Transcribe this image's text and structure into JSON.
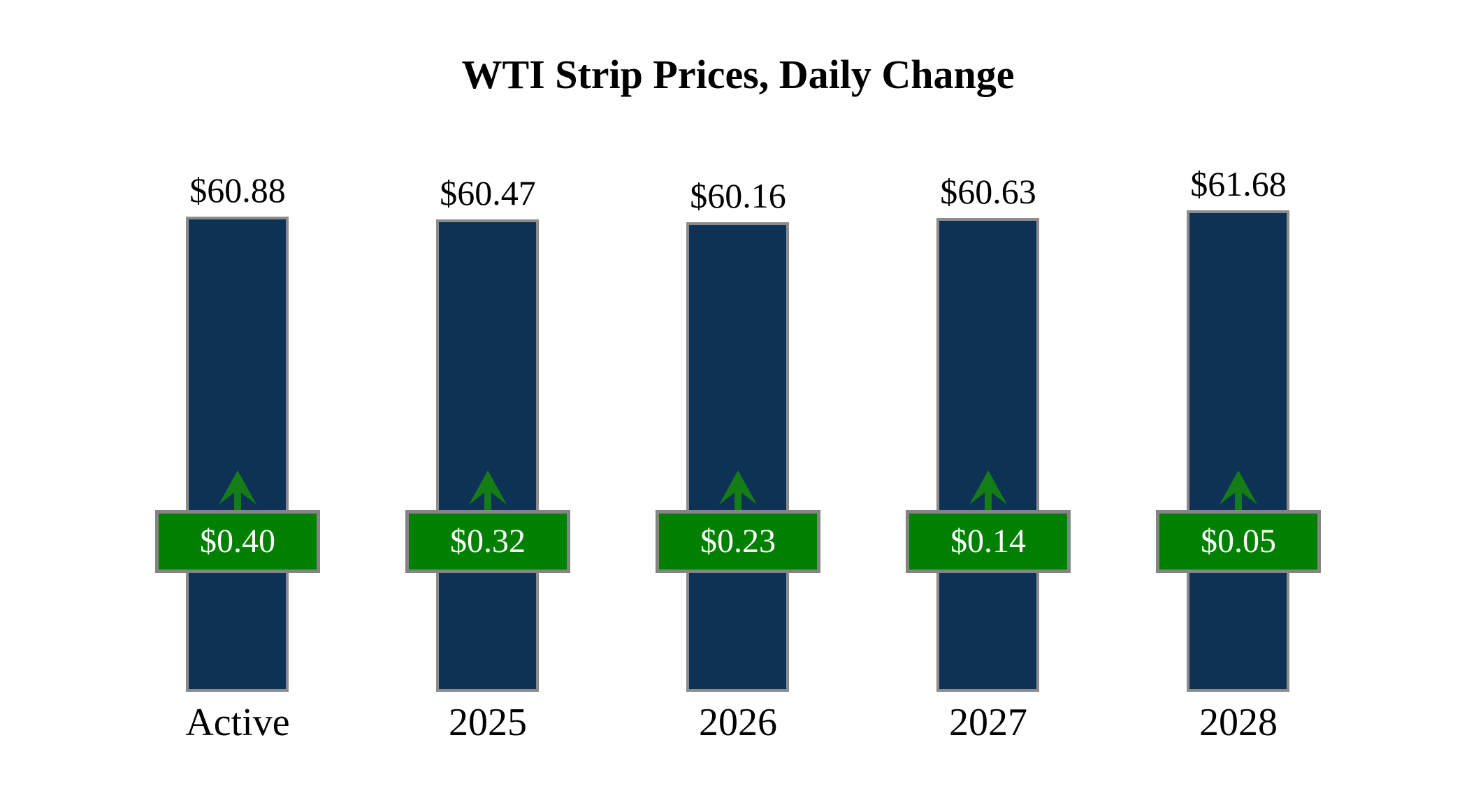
{
  "title": "WTI Strip Prices, Daily Change",
  "chart_data": {
    "type": "bar",
    "title": "WTI Strip Prices, Daily Change",
    "categories": [
      "Active",
      "2025",
      "2026",
      "2027",
      "2028"
    ],
    "series": [
      {
        "name": "Strip Price",
        "values": [
          60.88,
          60.47,
          60.16,
          60.63,
          61.68
        ],
        "labels": [
          "$60.88",
          "$60.47",
          "$60.16",
          "$60.63",
          "$61.68"
        ]
      },
      {
        "name": "Daily Change",
        "values": [
          0.4,
          0.32,
          0.23,
          0.14,
          0.05
        ],
        "labels": [
          "$0.40",
          "$0.32",
          "$0.23",
          "$0.14",
          "$0.05"
        ],
        "direction": "up"
      }
    ],
    "ylim": [
      0,
      62
    ],
    "grid": false,
    "legend": "none",
    "colors": {
      "bar_fill": "#0e3156",
      "bar_border": "#8c8c8c",
      "badge_fill": "#008000",
      "badge_border": "#848484",
      "badge_text": "#ffffff",
      "arrow": "#157d15",
      "text": "#000000",
      "background": "#ffffff"
    }
  }
}
